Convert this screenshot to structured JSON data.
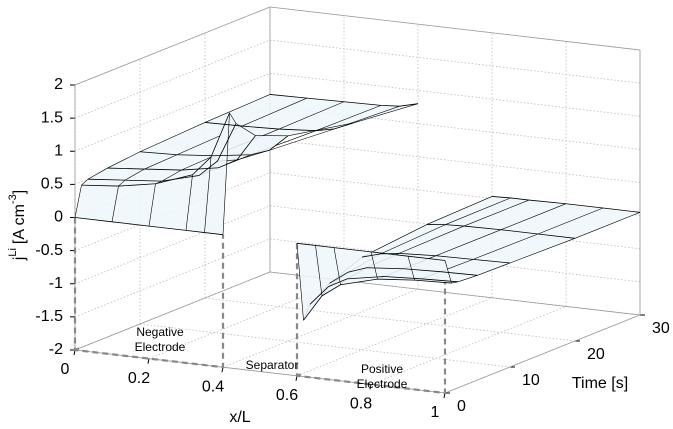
{
  "chart_data": {
    "type": "surface3d",
    "xlabel": "x/L",
    "ylabel": "Time [s]",
    "zlabel": {
      "text": "j",
      "sup": "Li",
      "unit": "[A cm",
      "unit_sup": "-3",
      "end": "]"
    },
    "xlim": [
      0,
      1
    ],
    "xticks": [
      0,
      0.2,
      0.4,
      0.6,
      0.8,
      1
    ],
    "ylim": [
      0,
      30
    ],
    "yticks": [
      0,
      10,
      20,
      30
    ],
    "zlim": [
      -2,
      2
    ],
    "zticks": [
      -2,
      -1.5,
      -1,
      -0.5,
      0,
      0.5,
      1,
      1.5,
      2
    ],
    "grid": true,
    "face_color": "#eef7fb",
    "edge_color": "#000000",
    "annotations": [
      [
        "Negative",
        "Electrode"
      ],
      [
        "Separator"
      ],
      [
        "Positive",
        "Electrode"
      ]
    ],
    "surfaces": [
      {
        "x": [
          0,
          0.1,
          0.2,
          0.3,
          0.35,
          0.4
        ],
        "t": [
          0,
          1,
          2,
          5,
          10,
          20,
          30
        ],
        "z": [
          [
            0,
            0,
            0,
            0,
            0,
            0
          ],
          [
            0.45,
            0.5,
            0.6,
            0.8,
            1.1,
            1.8
          ],
          [
            0.5,
            0.55,
            0.6,
            0.75,
            1.0,
            1.6
          ],
          [
            0.55,
            0.6,
            0.65,
            0.75,
            0.9,
            1.3
          ],
          [
            0.6,
            0.62,
            0.67,
            0.75,
            0.85,
            1.1
          ],
          [
            0.65,
            0.66,
            0.68,
            0.72,
            0.78,
            0.9
          ],
          [
            0.68,
            0.69,
            0.7,
            0.71,
            0.73,
            0.8
          ]
        ]
      },
      {
        "x": [
          0.6,
          0.65,
          0.7,
          0.8,
          0.9,
          1
        ],
        "t": [
          0,
          1,
          2,
          5,
          10,
          20,
          30
        ],
        "z": [
          [
            0,
            0,
            0,
            0,
            0,
            0
          ],
          [
            -1.2,
            -0.8,
            -0.6,
            -0.45,
            -0.4,
            -0.38
          ],
          [
            -1.0,
            -0.7,
            -0.55,
            -0.45,
            -0.42,
            -0.4
          ],
          [
            -0.8,
            -0.6,
            -0.5,
            -0.45,
            -0.43,
            -0.42
          ],
          [
            -0.6,
            -0.52,
            -0.48,
            -0.45,
            -0.44,
            -0.43
          ],
          [
            -0.5,
            -0.47,
            -0.46,
            -0.45,
            -0.45,
            -0.45
          ],
          [
            -0.47,
            -0.46,
            -0.46,
            -0.45,
            -0.45,
            -0.45
          ]
        ]
      }
    ]
  }
}
